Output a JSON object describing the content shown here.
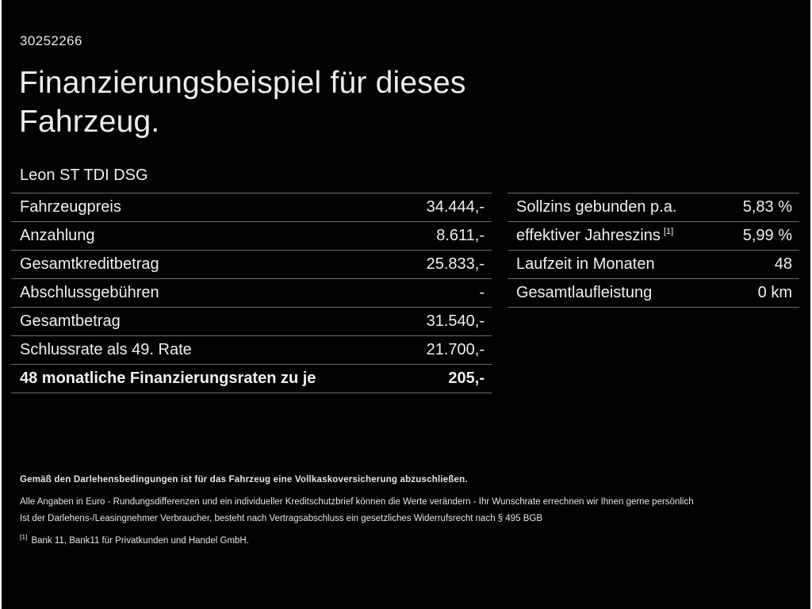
{
  "page": {
    "doc_id": "30252266",
    "title_line1": "Finanzierungsbeispiel für dieses",
    "title_line2": "Fahrzeug.",
    "subtitle": "Leon ST TDI DSG"
  },
  "left_table": {
    "rows": [
      {
        "label": "Fahrzeugpreis",
        "value": "34.444,-"
      },
      {
        "label": "Anzahlung",
        "value": "8.611,-"
      },
      {
        "label": "Gesamtkreditbetrag",
        "value": "25.833,-"
      },
      {
        "label": "Abschlussgebühren",
        "value": "-"
      },
      {
        "label": "Gesamtbetrag",
        "value": "31.540,-"
      },
      {
        "label": "Schlussrate als 49. Rate",
        "value": "21.700,-"
      },
      {
        "label": "48 monatliche Finanzierungsraten zu je",
        "value": "205,-"
      }
    ]
  },
  "right_table": {
    "rows": [
      {
        "label": "Sollzins gebunden p.a.",
        "value": "5,83 %"
      },
      {
        "label": "effektiver Jahreszins",
        "sup": "[1]",
        "value": "5,99 %"
      },
      {
        "label": "Laufzeit in Monaten",
        "value": "48"
      },
      {
        "label": "Gesamtlaufleistung",
        "value": "0 km"
      }
    ]
  },
  "footer": {
    "bold_note": "Gemäß den Darlehensbedingungen ist für das Fahrzeug eine Vollkaskoversicherung abzuschließen.",
    "line1": "Alle Angaben in Euro - Rundungsdifferenzen und ein individueller Kreditschutzbrief können die Werte verändern - Ihr Wunschrate errechnen wir Ihnen gerne persönlich",
    "line2": "Ist der Darlehens-/Leasingnehmer Verbraucher, besteht nach Vertragsabschluss ein gesetzliches Widerrufsrecht nach § 495 BGB",
    "footnote_marker": "[1]",
    "footnote_text": "Bank 11, Bank11 für Privatkunden und Handel GmbH."
  },
  "colors": {
    "background": "#020202",
    "text": "#f0f0f0",
    "divider": "#6b6b6b"
  }
}
